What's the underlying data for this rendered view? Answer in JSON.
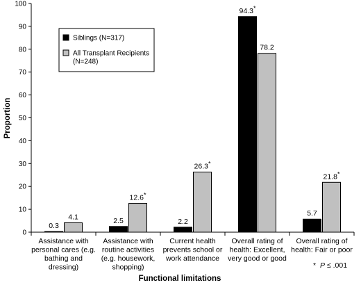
{
  "chart_data": {
    "type": "bar",
    "title": "",
    "xlabel": "Functional limitations",
    "ylabel": "Proportion",
    "ylim": [
      0,
      100
    ],
    "yticks": [
      0,
      10,
      20,
      30,
      40,
      50,
      60,
      70,
      80,
      90,
      100
    ],
    "grid": false,
    "legend_position": "top-left",
    "categories": [
      [
        "Assistance with",
        "personal cares (e.g.",
        "bathing and",
        "dressing)"
      ],
      [
        "Assistance with",
        "routine activities",
        "(e.g. housework,",
        "shopping)"
      ],
      [
        "Current health",
        "prevents school or",
        "work attendance"
      ],
      [
        "Overall rating of",
        "health: Excellent,",
        "very good or good"
      ],
      [
        "Overall rating of",
        "health: Fair or poor"
      ]
    ],
    "series": [
      {
        "name": "Siblings (N=317)",
        "legend_lines": [
          "Siblings (N=317)"
        ],
        "color": "#000000",
        "values": [
          0.3,
          2.5,
          2.2,
          94.3,
          5.7
        ],
        "labels": [
          "0.3",
          "2.5",
          "2.2",
          "94.3",
          "5.7"
        ],
        "significant": [
          false,
          false,
          false,
          true,
          false
        ]
      },
      {
        "name": "All Transplant Recipients (N=248)",
        "legend_lines": [
          "All Transplant Recipients",
          "(N=248)"
        ],
        "color": "#c0c0c0",
        "values": [
          4.1,
          12.6,
          26.3,
          78.2,
          21.8
        ],
        "labels": [
          "4.1",
          "12.6",
          "26.3",
          "78.2",
          "21.8"
        ],
        "significant": [
          false,
          true,
          true,
          false,
          true
        ]
      }
    ],
    "significance_marker": "*",
    "footnote": {
      "marker": "*",
      "p_symbol": "P",
      "condition": " ≤ .001"
    }
  }
}
